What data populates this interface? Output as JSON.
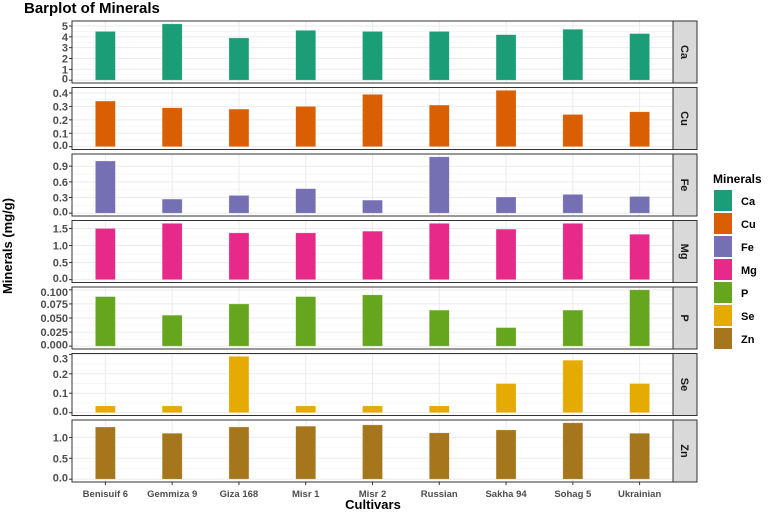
{
  "chart_data": {
    "type": "bar",
    "title": "Barplot of Minerals",
    "xlabel": "Cultivars",
    "ylabel": "Minerals (mg/g)",
    "grid": true,
    "facet_by": "Minerals",
    "categories": [
      "Benisuif 6",
      "Gemmiza 9",
      "Giza 168",
      "Misr 1",
      "Misr 2",
      "Russian",
      "Sakha 94",
      "Sohag 5",
      "Ukrainian"
    ],
    "legend": {
      "title": "Minerals",
      "placement": "right"
    },
    "series": [
      {
        "name": "Ca",
        "color": "#1B9E77",
        "values": [
          4.5,
          5.2,
          3.9,
          4.6,
          4.5,
          4.5,
          4.2,
          4.7,
          4.3
        ],
        "ticks": [
          0,
          1,
          2,
          3,
          4,
          5
        ],
        "tick_labels": [
          "0",
          "1",
          "2",
          "3",
          "4",
          "5"
        ],
        "ylim": [
          -0.26,
          5.46
        ]
      },
      {
        "name": "Cu",
        "color": "#D95F02",
        "values": [
          0.34,
          0.29,
          0.28,
          0.3,
          0.39,
          0.31,
          0.42,
          0.24,
          0.26
        ],
        "ticks": [
          0,
          0.1,
          0.2,
          0.3,
          0.4
        ],
        "tick_labels": [
          "0.0",
          "0.1",
          "0.2",
          "0.3",
          "0.4"
        ],
        "ylim": [
          -0.021,
          0.441
        ]
      },
      {
        "name": "Fe",
        "color": "#7570B3",
        "values": [
          1.0,
          0.27,
          0.34,
          0.47,
          0.25,
          1.08,
          0.31,
          0.36,
          0.32
        ],
        "ticks": [
          0,
          0.3,
          0.6,
          0.9
        ],
        "tick_labels": [
          "0.0",
          "0.3",
          "0.6",
          "0.9"
        ],
        "ylim": [
          -0.054,
          1.134
        ]
      },
      {
        "name": "Mg",
        "color": "#E7298A",
        "values": [
          1.5,
          1.65,
          1.37,
          1.37,
          1.42,
          1.65,
          1.48,
          1.65,
          1.33
        ],
        "ticks": [
          0,
          0.5,
          1,
          1.5
        ],
        "tick_labels": [
          "0.0",
          "0.5",
          "1.0",
          "1.5"
        ],
        "ylim": [
          -0.083,
          1.733
        ]
      },
      {
        "name": "P",
        "color": "#66A61E",
        "values": [
          0.088,
          0.055,
          0.075,
          0.088,
          0.091,
          0.064,
          0.033,
          0.064,
          0.1
        ],
        "ticks": [
          0,
          0.025,
          0.05,
          0.075,
          0.1
        ],
        "tick_labels": [
          "0.000",
          "0.025",
          "0.050",
          "0.075",
          "0.100"
        ],
        "ylim": [
          -0.005,
          0.105
        ]
      },
      {
        "name": "Se",
        "color": "#E6AB02",
        "values": [
          0.035,
          0.035,
          0.29,
          0.035,
          0.035,
          0.035,
          0.15,
          0.27,
          0.15
        ],
        "ticks": [
          0,
          0.1,
          0.2,
          0.3
        ],
        "tick_labels": [
          "0.0",
          "0.1",
          "0.2",
          "0.3"
        ],
        "ylim": [
          -0.0145,
          0.3045
        ]
      },
      {
        "name": "Zn",
        "color": "#A6761D",
        "values": [
          1.25,
          1.1,
          1.25,
          1.27,
          1.3,
          1.11,
          1.18,
          1.35,
          1.1
        ],
        "ticks": [
          0,
          0.5,
          1
        ],
        "tick_labels": [
          "0.0",
          "0.5",
          "1.0"
        ],
        "ylim": [
          -0.0675,
          1.4175
        ]
      }
    ]
  }
}
